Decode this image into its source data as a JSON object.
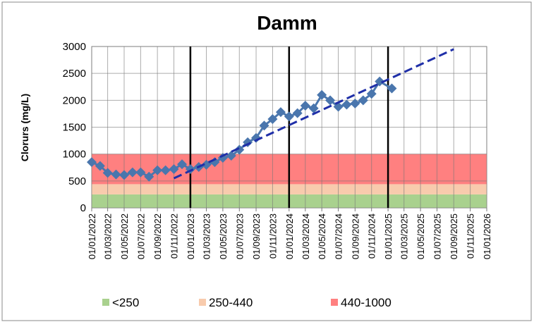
{
  "chart_data": {
    "type": "line",
    "title": "Damm",
    "y_label": "Clorurs (mg/L)",
    "ylim": [
      0,
      3000
    ],
    "yticks": [
      0,
      500,
      1000,
      1500,
      2000,
      2500,
      3000
    ],
    "xlim": [
      "01/01/2022",
      "01/01/2026"
    ],
    "xticks": [
      "01/01/2022",
      "01/03/2022",
      "01/05/2022",
      "01/07/2022",
      "01/09/2022",
      "01/11/2022",
      "01/01/2023",
      "01/03/2023",
      "01/05/2023",
      "01/07/2023",
      "01/09/2023",
      "01/11/2023",
      "01/01/2024",
      "01/03/2024",
      "01/05/2024",
      "01/07/2024",
      "01/09/2024",
      "01/11/2024",
      "01/01/2025",
      "01/03/2025",
      "01/05/2025",
      "01/07/2025",
      "01/09/2025",
      "01/11/2025",
      "01/01/2026"
    ],
    "grid": true,
    "bands": [
      {
        "name": "<250",
        "color": "#a9d18e",
        "from": 0,
        "to": 250
      },
      {
        "name": "250-440",
        "color": "#f8cbad",
        "from": 250,
        "to": 440
      },
      {
        "name": "440-1000",
        "color": "#ff8080",
        "from": 440,
        "to": 1000
      }
    ],
    "vlines": [
      "01/01/2023",
      "01/01/2024",
      "01/01/2025"
    ],
    "x": [
      "01/01/2022",
      "01/02/2022",
      "01/03/2022",
      "01/04/2022",
      "01/05/2022",
      "01/06/2022",
      "01/07/2022",
      "01/08/2022",
      "01/09/2022",
      "01/10/2022",
      "01/11/2022",
      "01/12/2022",
      "01/01/2023",
      "01/02/2023",
      "01/03/2023",
      "01/04/2023",
      "01/05/2023",
      "01/06/2023",
      "01/07/2023",
      "01/08/2023",
      "01/09/2023",
      "01/10/2023",
      "01/11/2023",
      "01/12/2023",
      "01/01/2024",
      "01/02/2024",
      "01/03/2024",
      "01/04/2024",
      "01/05/2024",
      "01/06/2024",
      "01/07/2024",
      "01/08/2024",
      "01/09/2024",
      "01/10/2024",
      "01/11/2024",
      "01/12/2024",
      "15/01/2025"
    ],
    "series": [
      {
        "color": "#4a76ad",
        "values": [
          850,
          780,
          650,
          620,
          610,
          660,
          660,
          580,
          700,
          700,
          720,
          810,
          720,
          760,
          800,
          850,
          930,
          970,
          1080,
          1220,
          1300,
          1530,
          1650,
          1780,
          1700,
          1760,
          1900,
          1850,
          2100,
          2000,
          1880,
          1920,
          1940,
          2000,
          2120,
          2350,
          2220
        ]
      }
    ],
    "trendline": {
      "x": [
        "01/11/2022",
        "01/09/2025"
      ],
      "values": [
        550,
        2950
      ],
      "color": "#1f2fa8"
    }
  }
}
